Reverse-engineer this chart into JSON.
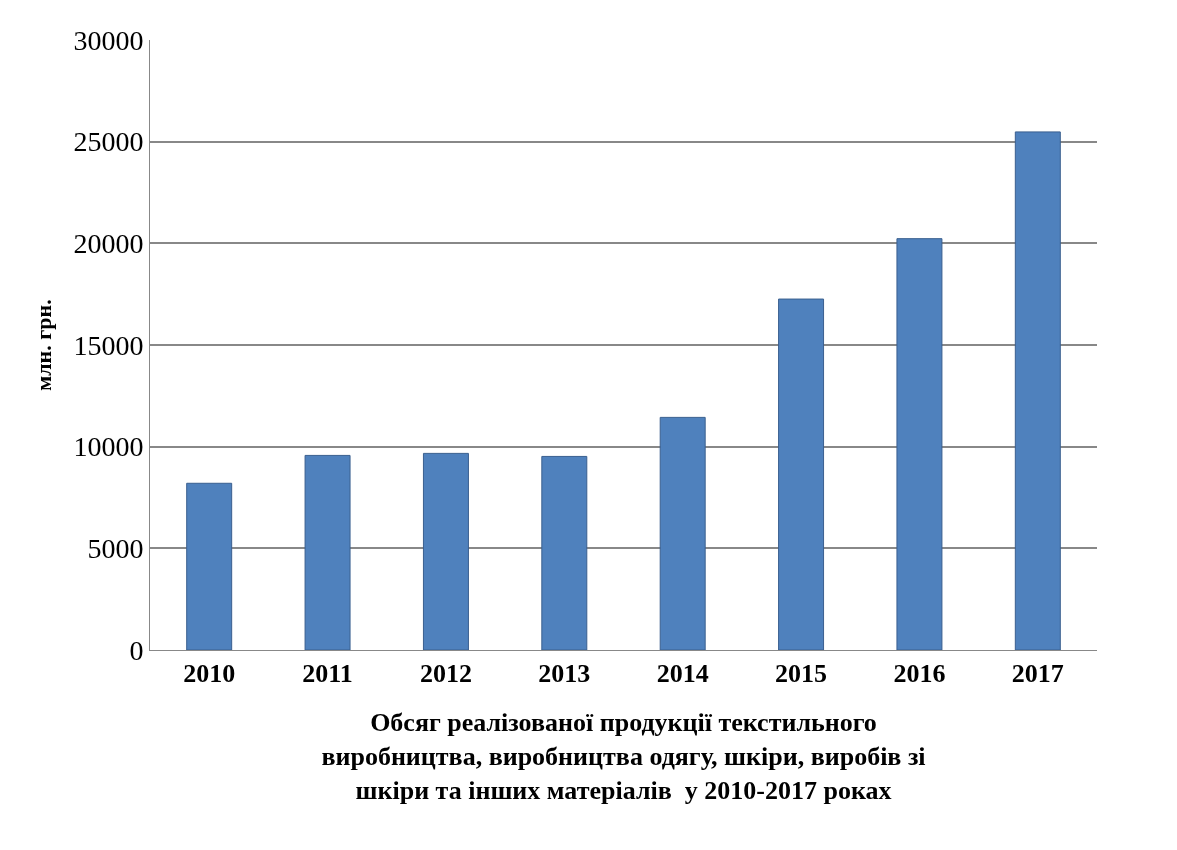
{
  "chart_data": {
    "type": "bar",
    "categories": [
      "2010",
      "2011",
      "2012",
      "2013",
      "2014",
      "2015",
      "2016",
      "2017"
    ],
    "values": [
      8200,
      9570,
      9670,
      9520,
      11440,
      17260,
      20230,
      25480
    ],
    "color": "#4f81bd",
    "ylabel": "млн. грн.",
    "xlabel": "Обсяг реалізованої продукції текстильного\nвиробництва, виробництва одягу, шкіри, виробів зі\nшкіри та інших матеріалів  у 2010-2017 роках",
    "ylim": [
      0,
      30000
    ],
    "yticks": [
      0,
      5000,
      10000,
      15000,
      20000,
      25000,
      30000
    ],
    "grid": "y"
  }
}
